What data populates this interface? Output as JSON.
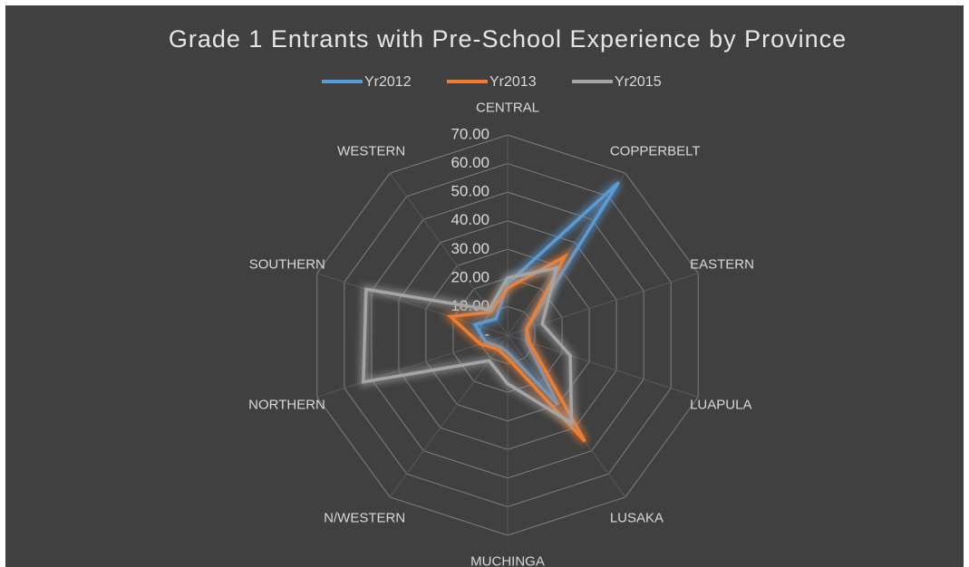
{
  "chart_data": {
    "type": "radar",
    "title": "Grade 1 Entrants with Pre-School Experience by Province",
    "categories": [
      "CENTRAL",
      "COPPERBELT",
      "EASTERN",
      "LUAPULA",
      "LUSAKA",
      "MUCHINGA",
      "N/WESTERN",
      "NORTHERN",
      "SOUTHERN",
      "WESTERN"
    ],
    "series": [
      {
        "name": "Yr2012",
        "color": "#5b9bd5",
        "values": [
          18,
          66,
          7,
          7,
          30,
          6,
          5,
          8,
          12,
          7
        ]
      },
      {
        "name": "Yr2013",
        "color": "#ed7d31",
        "values": [
          16.5,
          34,
          7,
          8,
          46,
          8,
          6,
          10,
          21,
          10
        ]
      },
      {
        "name": "Yr2015",
        "color": "#a5a5a5",
        "values": [
          20,
          29,
          12.7,
          23,
          38,
          17,
          11,
          53,
          52,
          11
        ]
      }
    ],
    "ylim": [
      0,
      70
    ],
    "yticks": [
      {
        "value": 0,
        "label": "-"
      },
      {
        "value": 10,
        "label": "10.00"
      },
      {
        "value": 20,
        "label": "20.00"
      },
      {
        "value": 30,
        "label": "30.00"
      },
      {
        "value": 40,
        "label": "40.00"
      },
      {
        "value": 50,
        "label": "50.00"
      },
      {
        "value": 60,
        "label": "60.00"
      },
      {
        "value": 70,
        "label": "70.00"
      }
    ],
    "grid": true,
    "legend": "top"
  }
}
